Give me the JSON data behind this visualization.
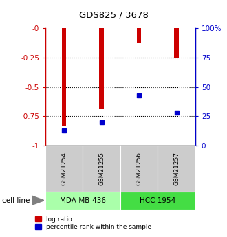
{
  "title": "GDS825 / 3678",
  "samples": [
    "GSM21254",
    "GSM21255",
    "GSM21256",
    "GSM21257"
  ],
  "log_ratio": [
    -0.83,
    -0.68,
    -0.12,
    -0.25
  ],
  "percentile_rank": [
    13,
    20,
    43,
    28
  ],
  "cell_lines": [
    {
      "label": "MDA-MB-436",
      "samples": [
        0,
        1
      ],
      "color": "#aaffaa"
    },
    {
      "label": "HCC 1954",
      "samples": [
        2,
        3
      ],
      "color": "#44dd44"
    }
  ],
  "ylim_left": [
    -1,
    0
  ],
  "bar_color": "#cc0000",
  "marker_color": "#0000cc",
  "sample_box_color": "#cccccc",
  "left_tick_labels": [
    "-0",
    "-0.25",
    "-0.5",
    "-0.75",
    "-1"
  ],
  "left_tick_vals": [
    0,
    -0.25,
    -0.5,
    -0.75,
    -1
  ],
  "right_tick_labels": [
    "100%",
    "75",
    "50",
    "25",
    "0"
  ],
  "right_tick_vals": [
    100,
    75,
    50,
    25,
    0
  ],
  "dotted_lines": [
    -0.25,
    -0.5,
    -0.75
  ],
  "legend_items": [
    "log ratio",
    "percentile rank within the sample"
  ],
  "cell_line_label": "cell line"
}
